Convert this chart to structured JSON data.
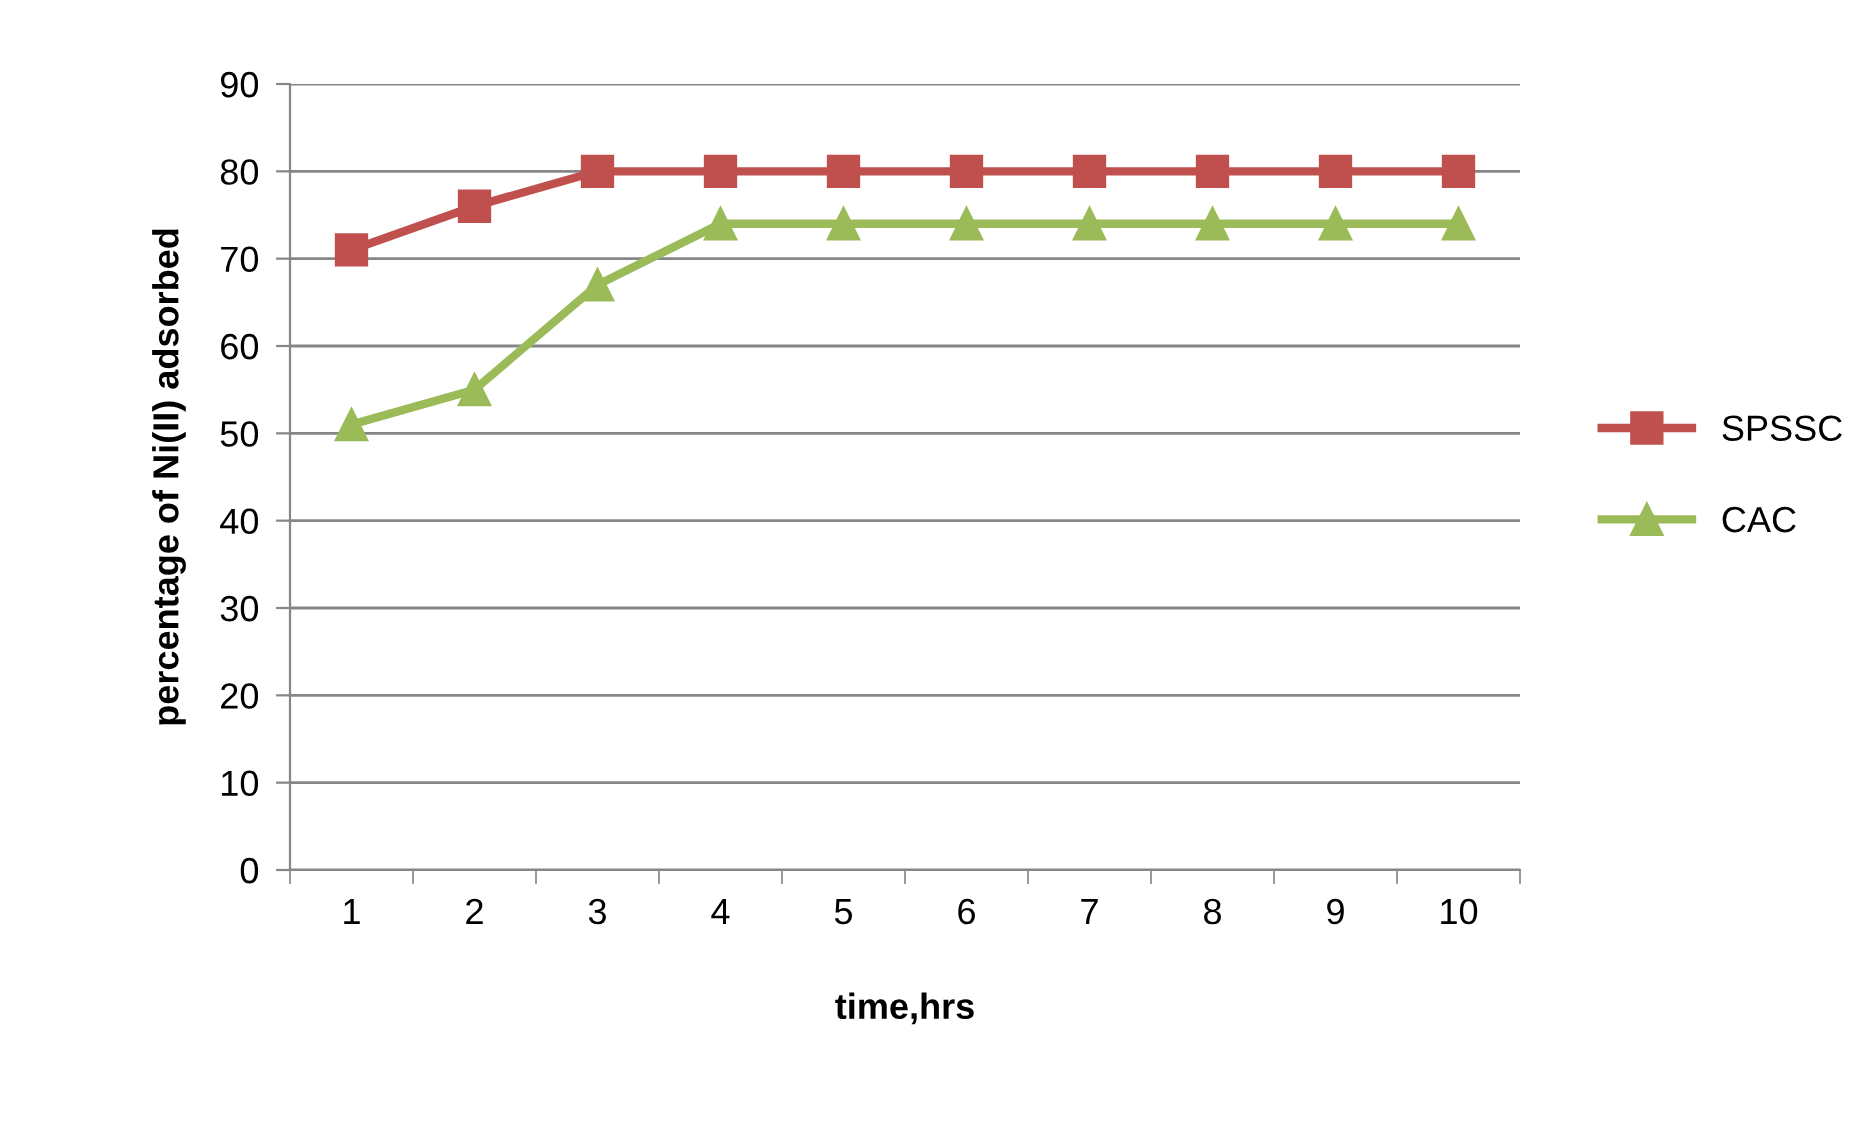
{
  "chart_data": {
    "type": "line",
    "xlabel": "time,hrs",
    "ylabel": "percentage of Ni(II) adsorbed",
    "categories": [
      "1",
      "2",
      "3",
      "4",
      "5",
      "6",
      "7",
      "8",
      "9",
      "10"
    ],
    "series": [
      {
        "name": "SPSSC",
        "color": "#c0504d",
        "marker": "square",
        "values": [
          71,
          76,
          80,
          80,
          80,
          80,
          80,
          80,
          80,
          80
        ]
      },
      {
        "name": "CAC",
        "color": "#9bbb59",
        "marker": "triangle",
        "values": [
          51,
          55,
          67,
          74,
          74,
          74,
          74,
          74,
          74,
          74
        ]
      }
    ],
    "ylim": [
      0,
      90
    ],
    "yticks": [
      0,
      10,
      20,
      30,
      40,
      50,
      60,
      70,
      80,
      90
    ],
    "grid": "y",
    "legend": "right",
    "line_style": "solid"
  }
}
